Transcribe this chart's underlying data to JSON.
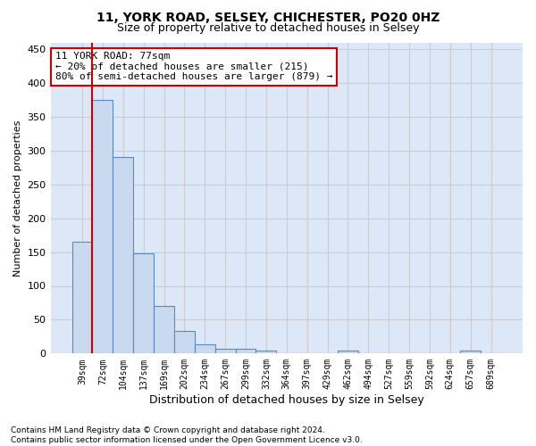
{
  "title1": "11, YORK ROAD, SELSEY, CHICHESTER, PO20 0HZ",
  "title2": "Size of property relative to detached houses in Selsey",
  "xlabel": "Distribution of detached houses by size in Selsey",
  "ylabel": "Number of detached properties",
  "footnote": "Contains HM Land Registry data © Crown copyright and database right 2024.\nContains public sector information licensed under the Open Government Licence v3.0.",
  "categories": [
    "39sqm",
    "72sqm",
    "104sqm",
    "137sqm",
    "169sqm",
    "202sqm",
    "234sqm",
    "267sqm",
    "299sqm",
    "332sqm",
    "364sqm",
    "397sqm",
    "429sqm",
    "462sqm",
    "494sqm",
    "527sqm",
    "559sqm",
    "592sqm",
    "624sqm",
    "657sqm",
    "689sqm"
  ],
  "values": [
    165,
    375,
    290,
    148,
    70,
    33,
    14,
    7,
    7,
    5,
    0,
    0,
    0,
    4,
    0,
    0,
    0,
    0,
    0,
    4,
    0
  ],
  "bar_color": "#c9d9f0",
  "bar_edge_color": "#5a8ac6",
  "grid_color": "#cccccc",
  "background_color": "#dce8f8",
  "annotation_line1": "11 YORK ROAD: 77sqm",
  "annotation_line2": "← 20% of detached houses are smaller (215)",
  "annotation_line3": "80% of semi-detached houses are larger (879) →",
  "vline_color": "#cc0000",
  "vline_x_index": 0.5,
  "ylim": [
    0,
    460
  ],
  "yticks": [
    0,
    50,
    100,
    150,
    200,
    250,
    300,
    350,
    400,
    450
  ],
  "title1_fontsize": 10,
  "title2_fontsize": 9,
  "annotation_fontsize": 8,
  "xlabel_fontsize": 9,
  "ylabel_fontsize": 8,
  "footnote_fontsize": 6.5
}
